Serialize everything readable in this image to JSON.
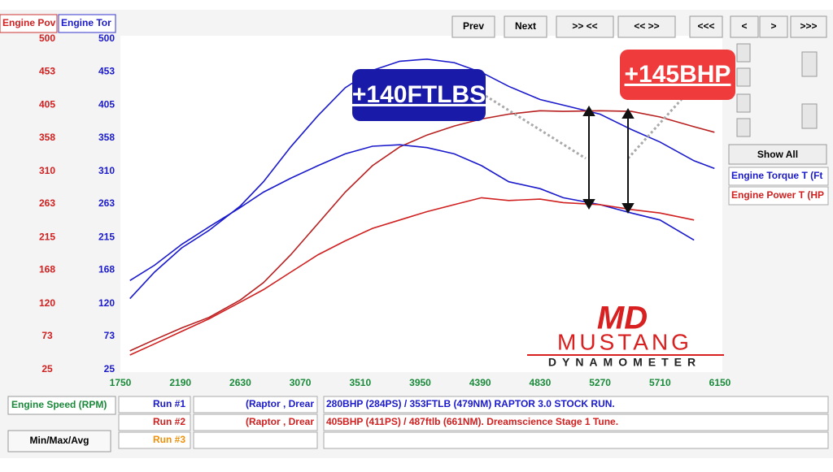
{
  "header": {
    "power_tab": "Engine Pov",
    "torque_tab": "Engine Tor"
  },
  "buttons": [
    "Prev",
    "Next",
    ">> <<",
    "<< >>",
    "<<<",
    "<",
    ">",
    ">>>"
  ],
  "side_panel": {
    "show_all": "Show All",
    "legend": [
      "Engine Torque T (Ft",
      "Engine Power T (HP"
    ]
  },
  "annotations": {
    "torque_gain": "+140FTLBS",
    "power_gain": "+145BHP"
  },
  "logo": {
    "name": "MUSTANG",
    "tagline": "DYNAMOMETER"
  },
  "footer": {
    "x_label": "Engine Speed (RPM)",
    "min_max": "Min/Max/Avg",
    "runs": [
      {
        "run": "Run #1",
        "vehicle": "(Raptor , Drear",
        "note": "280BHP (284PS) / 353FTLB (479NM) RAPTOR 3.0 STOCK RUN."
      },
      {
        "run": "Run #2",
        "vehicle": "(Raptor , Drear",
        "note": "405BHP (411PS) / 487ftlb (661NM). Dreamscience Stage 1 Tune."
      },
      {
        "run": "Run #3"
      }
    ]
  },
  "chart_data": {
    "type": "line",
    "x": [
      1820,
      2000,
      2200,
      2400,
      2630,
      2800,
      3000,
      3200,
      3400,
      3600,
      3800,
      4000,
      4200,
      4400,
      4600,
      4830,
      5000,
      5270,
      5500,
      5710,
      5960,
      6110
    ],
    "xlim": [
      1750,
      6150
    ],
    "xticks": [
      1750,
      2190,
      2630,
      3070,
      3510,
      3950,
      4390,
      4830,
      5270,
      5710,
      6150
    ],
    "ylim": [
      25,
      500
    ],
    "yticks": [
      25,
      73,
      120,
      168,
      215,
      263,
      310,
      358,
      405,
      453,
      500
    ],
    "y2lim": [
      25,
      500
    ],
    "y2ticks": [
      25,
      73,
      120,
      168,
      215,
      263,
      310,
      358,
      405,
      453,
      500
    ],
    "series": [
      {
        "color": "#1a1acc",
        "axis": "y2",
        "values": [
          127,
          165,
          200,
          225,
          260,
          295,
          345,
          390,
          430,
          455,
          468,
          471,
          466,
          452,
          432,
          413,
          405,
          392,
          370,
          352,
          325,
          314
        ]
      },
      {
        "color": "#b82020",
        "values": [
          52,
          68,
          85,
          100,
          125,
          150,
          190,
          235,
          280,
          318,
          345,
          362,
          375,
          385,
          392,
          397,
          396,
          397,
          396,
          388,
          374,
          366
        ]
      },
      {
        "color": "#1a1acc",
        "axis": "y2",
        "values": [
          153,
          175,
          205,
          230,
          258,
          280,
          300,
          318,
          335,
          346,
          348,
          344,
          335,
          318,
          295,
          285,
          272,
          262,
          250,
          240,
          211,
          null
        ]
      },
      {
        "color": "#d02020",
        "values": [
          46,
          62,
          80,
          98,
          122,
          140,
          165,
          190,
          210,
          228,
          240,
          252,
          262,
          272,
          268,
          270,
          265,
          262,
          255,
          250,
          240,
          null
        ]
      }
    ]
  }
}
